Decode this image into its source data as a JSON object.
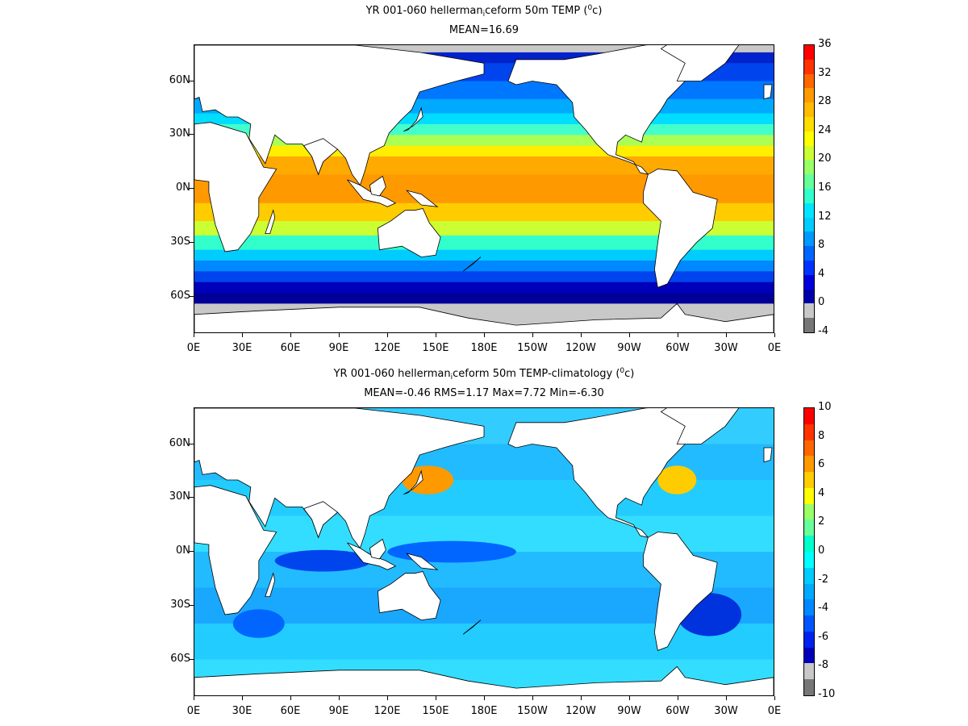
{
  "panels": [
    {
      "title_main": "YR 001-060 hellerman",
      "title_sub": "i",
      "title_rest": "ceform 50m TEMP (",
      "title_sup": "0",
      "title_unit": "c)",
      "stats": "MEAN=16.69",
      "lat_ticks": [
        "60N",
        "30N",
        "0N",
        "30S",
        "60S"
      ],
      "lon_ticks": [
        "0E",
        "30E",
        "60E",
        "90E",
        "120E",
        "150E",
        "180E",
        "150W",
        "120W",
        "90W",
        "60W",
        "30W",
        "0E"
      ],
      "colorbar_labels": [
        "36",
        "32",
        "28",
        "24",
        "20",
        "16",
        "12",
        "8",
        "4",
        "0",
        "-4"
      ],
      "colorbar_colors": [
        "#ff0000",
        "#ff3300",
        "#ff6600",
        "#ff9900",
        "#ffbb00",
        "#ffdd00",
        "#ffff00",
        "#ccff33",
        "#99ff66",
        "#66ff99",
        "#33ffcc",
        "#00e5ff",
        "#00ccff",
        "#0099ff",
        "#0066ff",
        "#0033ff",
        "#0000dd",
        "#0000aa",
        "#c8c8c8",
        "#777777"
      ],
      "field": "temperature"
    },
    {
      "title_main": "YR 001-060 hellerman",
      "title_sub": "i",
      "title_rest": "ceform 50m TEMP-climatology (",
      "title_sup": "0",
      "title_unit": "c)",
      "stats": "MEAN=-0.46   RMS=1.17   Max=7.72   Min=-6.30",
      "lat_ticks": [
        "60N",
        "30N",
        "0N",
        "30S",
        "60S"
      ],
      "lon_ticks": [
        "0E",
        "30E",
        "60E",
        "90E",
        "120E",
        "150E",
        "180E",
        "150W",
        "120W",
        "90W",
        "60W",
        "30W",
        "0E"
      ],
      "colorbar_labels": [
        "10",
        "8",
        "6",
        "4",
        "2",
        "0",
        "-2",
        "-4",
        "-6",
        "-8",
        "-10"
      ],
      "colorbar_colors": [
        "#ff0000",
        "#ff3300",
        "#ff6600",
        "#ff9900",
        "#ffcc00",
        "#ffff00",
        "#99ff66",
        "#66ff99",
        "#00ffcc",
        "#00ffff",
        "#00ccff",
        "#00aaff",
        "#0088ff",
        "#0055ff",
        "#0022ee",
        "#0000bb",
        "#c8c8c8",
        "#777777"
      ],
      "field": "anomaly"
    }
  ]
}
